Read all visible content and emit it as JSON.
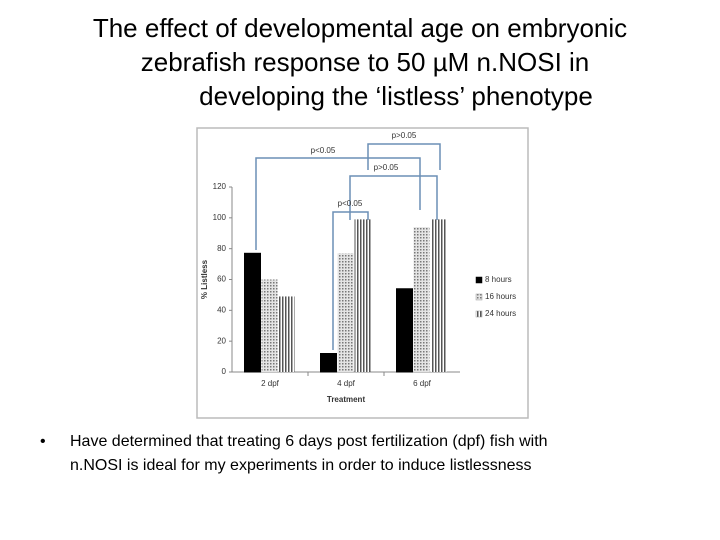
{
  "slide": {
    "title_lines": [
      "The effect of developmental age on embryonic",
      "zebrafish response to 50 µM n.NOSI in",
      "developing the ‘listless’ phenotype"
    ],
    "bullet_lines": [
      "Have determined that treating 6 days post fertilization (dpf) fish with",
      "n.NOSI is ideal for my experiments in order to induce listlessness"
    ]
  },
  "chart_data": {
    "type": "bar",
    "categories": [
      "2 dpf",
      "4 dpf",
      "6 dpf"
    ],
    "series": [
      {
        "name": "8 hours",
        "color": "#000000",
        "pattern": "solid",
        "values": [
          77,
          12,
          54
        ]
      },
      {
        "name": "16 hours",
        "color": "#777777",
        "pattern": "dots",
        "values": [
          60,
          77,
          94
        ]
      },
      {
        "name": "24 hours",
        "color": "#555555",
        "pattern": "stripes",
        "values": [
          49,
          99,
          99
        ]
      }
    ],
    "xlabel": "Treatment",
    "ylabel": "% Listless",
    "ylim": [
      0,
      120
    ],
    "yticks": [
      0,
      20,
      40,
      60,
      80,
      100,
      120
    ],
    "grid": false,
    "legend": "right",
    "annotations": [
      "p>0.05",
      "p<0.05",
      "p>0.05",
      "p<0.05"
    ]
  }
}
